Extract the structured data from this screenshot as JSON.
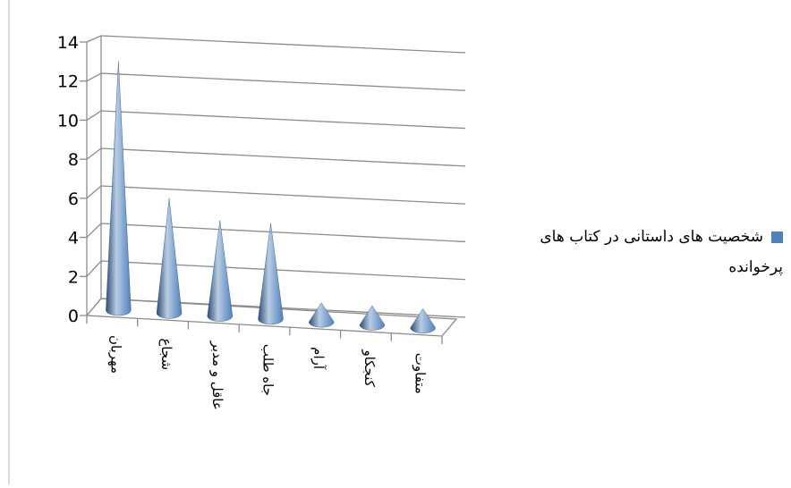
{
  "chart_data": {
    "type": "bar",
    "bar_shape": "cone",
    "three_d": true,
    "categories": [
      "مهربان",
      "شجاع",
      "عاقل و مدبر",
      "جاه طلب",
      "آرام",
      "کنجکاو",
      "متفاوت"
    ],
    "series": [
      {
        "name": "شخصیت های داستانی در کتاب های پرخوانده",
        "values": [
          13,
          6,
          5,
          5,
          1,
          1,
          1
        ]
      }
    ],
    "yticks": [
      "0",
      "2",
      "4",
      "6",
      "8",
      "10",
      "12",
      "14"
    ],
    "ylim": [
      0,
      14
    ],
    "grid": true,
    "legend_position": "right",
    "colors": {
      "series": "#4F81BD",
      "series_dark": "#2C4D75",
      "series_light": "#B8CCE4",
      "grid": "#8C8C8C"
    }
  }
}
